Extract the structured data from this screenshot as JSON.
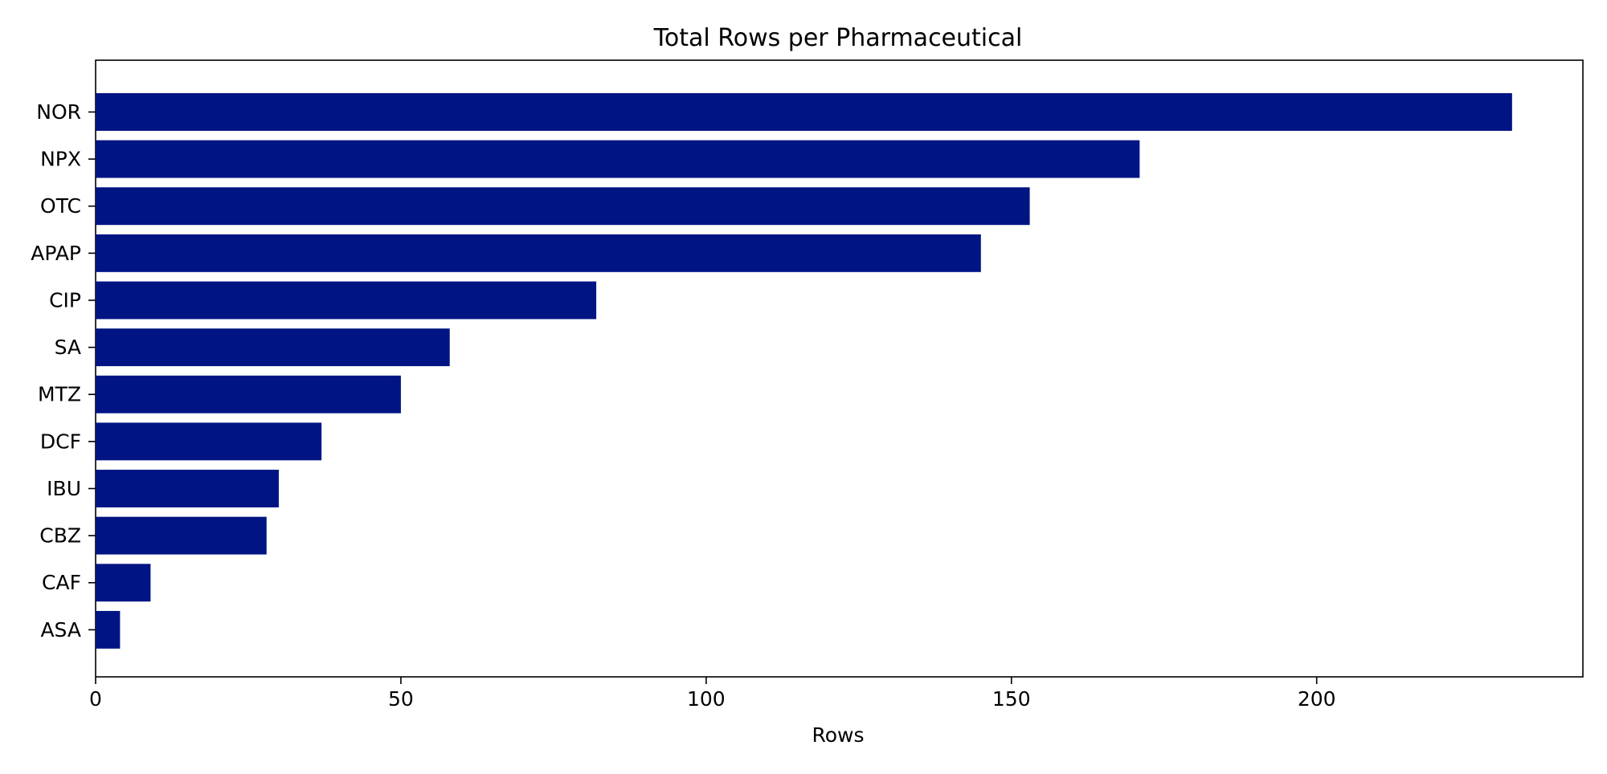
{
  "chart_data": {
    "type": "bar",
    "orientation": "horizontal",
    "title": "Total Rows per Pharmaceutical",
    "xlabel": "Rows",
    "ylabel": "",
    "categories": [
      "NOR",
      "NPX",
      "OTC",
      "APAP",
      "CIP",
      "SA",
      "MTZ",
      "DCF",
      "IBU",
      "CBZ",
      "CAF",
      "ASA"
    ],
    "values": [
      232,
      171,
      153,
      145,
      82,
      58,
      50,
      37,
      30,
      28,
      9,
      4
    ],
    "xlim": [
      0,
      243.6
    ],
    "xticks": [
      0,
      50,
      100,
      150,
      200
    ],
    "grid": false,
    "legend": "none",
    "colors": {
      "bar": "#001484",
      "axes": "#000000",
      "background": "#ffffff"
    }
  }
}
